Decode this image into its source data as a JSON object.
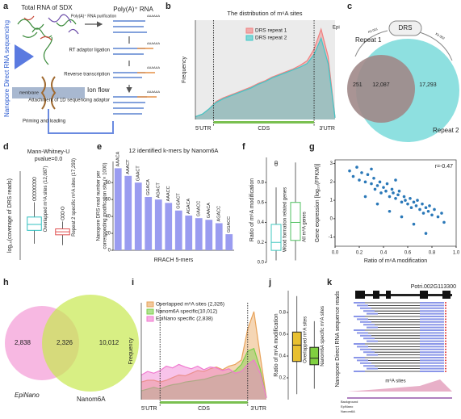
{
  "panel_labels": [
    "a",
    "b",
    "c",
    "d",
    "e",
    "f",
    "g",
    "h",
    "i",
    "j",
    "k"
  ],
  "panel_a": {
    "side_title": "Nanopore Direct RNA sequencing",
    "total_rna": "Total RNA of SDX",
    "purification": "Poly(A)⁺ RNA purification",
    "polya": "Poly(A)⁺ RNA",
    "steps": [
      "RT adaptor ligation",
      "Reverse transcription",
      "Attachment of 1D sequencing adaptor"
    ],
    "loading": "Priming and loading",
    "ion_flow": "Ion flow",
    "membrane": "membrane",
    "polya_tail": "AAAAAA"
  },
  "panel_c": {
    "top": "DRS",
    "kit1": "Kit 001",
    "kit2": "Kit 002",
    "left": "Repeat 1",
    "right": "Repeat 2",
    "only1": "251",
    "both": "12,087",
    "only2": "17,293"
  },
  "panel_h": {
    "left": "2,838",
    "both": "2,326",
    "right": "10,012",
    "name1": "EpiNano",
    "name2": "Nanom6A"
  },
  "panel_k": {
    "gene": "Potri.002G113300",
    "ylabel": "Nanopore Direct RNA sequence reads",
    "sites": "m⁶A sites",
    "tracks": [
      "Background",
      "EpiNano",
      "Nanom6A"
    ]
  },
  "chart_data": [
    {
      "type": "area",
      "title": "The distribution of m⁶A sites",
      "ylabel": "Frequency",
      "regions": [
        "5'UTR",
        "CDS",
        "3'UTR"
      ],
      "note": "Epi",
      "ylim": [
        0,
        1.1
      ],
      "background": "#ebebeb",
      "series": [
        {
          "name": "DRS repeat 1",
          "color": "#f08080",
          "values": [
            0.03,
            0.06,
            0.12,
            0.2,
            0.24,
            0.27,
            0.3,
            0.33,
            0.36,
            0.4,
            0.43,
            0.47,
            0.5,
            0.53,
            0.56,
            0.6,
            0.65,
            0.78,
            1.0,
            0.7,
            0.02
          ]
        },
        {
          "name": "DRS repeat 2",
          "color": "#40c8c8",
          "values": [
            0.03,
            0.06,
            0.12,
            0.19,
            0.23,
            0.26,
            0.29,
            0.32,
            0.35,
            0.39,
            0.42,
            0.46,
            0.49,
            0.52,
            0.55,
            0.58,
            0.62,
            0.72,
            0.9,
            0.62,
            0.02
          ]
        }
      ]
    },
    {
      "type": "box",
      "title": [
        "Mann-Whitney-U",
        "pvalue=0.0"
      ],
      "ylabel": "log₁₀(coverage of DRS reads)",
      "ylim": [
        0,
        6
      ],
      "fill_boxes": false,
      "boxes": [
        {
          "name": "Overlapped m⁶A sites (12,087)",
          "color": "#30c0c0",
          "low": 1.1,
          "q1": 2.0,
          "median": 2.4,
          "q3": 2.9,
          "high": 3.9,
          "outliers": [
            4.1,
            4.3,
            4.5,
            4.7,
            4.9,
            5.1,
            5.3,
            5.5
          ]
        },
        {
          "name": "Repeat 2 specific m⁶A sites (17,293)",
          "color": "#e05050",
          "low": 1.0,
          "q1": 1.7,
          "median": 1.9,
          "q3": 2.1,
          "high": 2.6,
          "outliers": [
            2.8,
            3.0,
            3.2,
            3.5
          ]
        }
      ]
    },
    {
      "type": "bar",
      "title": "12 identified k-mers by Nanom6A",
      "xlabel": "RRACH 5-mers",
      "ylabel": [
        "Nanopore DRS read number per",
        "corresponding modification site (× 1000)"
      ],
      "color": "#9a9cf0",
      "categories": [
        "AAACA",
        "AAACT",
        "GAACT",
        "GGACA",
        "AGACT",
        "AAACC",
        "GGACT",
        "AGACA",
        "GAACC",
        "GAACA",
        "AGACC",
        "GGACC"
      ],
      "values": [
        97,
        88,
        80,
        63,
        60,
        56,
        47,
        41,
        38,
        36,
        32,
        19
      ],
      "ylim": [
        0,
        105
      ],
      "yticks": [
        0,
        20,
        40,
        60,
        80
      ]
    },
    {
      "type": "box",
      "ylabel": "Ratio of m⁶A modification",
      "ylim": [
        0,
        1.05
      ],
      "yticks": [
        {
          "value": 0,
          "label": "0.0"
        },
        0.2,
        0.4,
        0.6,
        0.8
      ],
      "fill_boxes": false,
      "boxes": [
        {
          "name": "Wood formation related genes",
          "color": "#40c8c0",
          "low": 0.02,
          "q1": 0.12,
          "median": 0.2,
          "q3": 0.38,
          "high": 0.75,
          "outliers": [
            0.98,
            1.0
          ]
        },
        {
          "name": "All m⁶A genes",
          "color": "#50c060",
          "low": 0.02,
          "q1": 0.22,
          "median": 0.4,
          "q3": 0.6,
          "high": 1.0,
          "outliers": []
        }
      ]
    },
    {
      "type": "scatter",
      "xlabel": "Ratio of m⁶A modification",
      "ylabel": "Gene expression [log₁₀(FPKM)]",
      "annotation": "r=-0.47",
      "color": "#2a78b8",
      "xlim": [
        0,
        1.0
      ],
      "xticks": [
        {
          "value": 0,
          "label": "0.0"
        },
        0.2,
        0.4,
        0.6,
        0.8,
        {
          "value": 1,
          "label": "1.0"
        }
      ],
      "ylim": [
        -1.5,
        3.2
      ],
      "yticks": [
        -1,
        0,
        1,
        2,
        3
      ],
      "x": [
        0.12,
        0.15,
        0.18,
        0.2,
        0.22,
        0.25,
        0.27,
        0.3,
        0.32,
        0.33,
        0.35,
        0.37,
        0.38,
        0.4,
        0.42,
        0.43,
        0.45,
        0.47,
        0.48,
        0.5,
        0.52,
        0.53,
        0.55,
        0.57,
        0.58,
        0.6,
        0.62,
        0.63,
        0.65,
        0.67,
        0.68,
        0.7,
        0.72,
        0.73,
        0.75,
        0.77,
        0.78,
        0.8,
        0.82,
        0.85,
        0.88,
        0.9,
        0.25,
        0.35,
        0.45,
        0.55,
        0.65,
        0.75,
        0.3,
        0.5
      ],
      "y": [
        2.6,
        2.3,
        2.8,
        2.1,
        2.5,
        2.0,
        2.4,
        1.9,
        2.2,
        1.6,
        1.8,
        2.0,
        1.4,
        1.7,
        1.5,
        1.9,
        1.2,
        1.6,
        1.4,
        1.1,
        1.3,
        1.5,
        0.9,
        1.2,
        1.0,
        0.8,
        1.1,
        0.6,
        0.9,
        0.7,
        1.0,
        0.5,
        0.8,
        0.3,
        0.6,
        0.4,
        0.7,
        0.2,
        0.5,
        0.1,
        0.3,
        -0.2,
        1.2,
        0.8,
        0.4,
        0.1,
        -0.3,
        -0.8,
        2.7,
        2.1
      ]
    },
    {
      "type": "area",
      "ylabel": "Frequency",
      "regions": [
        "5'UTR",
        "CDS",
        "3'UTR"
      ],
      "ylim": [
        0,
        1.1
      ],
      "background": "#ffffff",
      "series": [
        {
          "name": "Overlapped m⁶A sites (2,326)",
          "color": "#e8a35a",
          "values": [
            0.2,
            0.22,
            0.22,
            0.2,
            0.22,
            0.25,
            0.28,
            0.27,
            0.3,
            0.33,
            0.32,
            0.35,
            0.37,
            0.34,
            0.38,
            0.4,
            0.45,
            0.8,
            1.0,
            0.5,
            0.02
          ]
        },
        {
          "name": "Nanom6A specific(10,012)",
          "color": "#7ccf4a",
          "values": [
            0.1,
            0.12,
            0.14,
            0.12,
            0.15,
            0.17,
            0.18,
            0.2,
            0.21,
            0.22,
            0.23,
            0.25,
            0.27,
            0.28,
            0.3,
            0.33,
            0.4,
            0.55,
            0.58,
            0.35,
            0.02
          ]
        },
        {
          "name": "EpiNano specific (2,838)",
          "color": "#f07ad0",
          "values": [
            0.28,
            0.32,
            0.3,
            0.33,
            0.38,
            0.36,
            0.4,
            0.37,
            0.35,
            0.38,
            0.34,
            0.37,
            0.36,
            0.33,
            0.35,
            0.3,
            0.32,
            0.4,
            0.45,
            0.3,
            0.02
          ]
        }
      ]
    },
    {
      "type": "box",
      "ylabel": "Ratio of m⁶A modification",
      "ylim": [
        0,
        1
      ],
      "yticks": [
        0.2,
        0.4,
        0.6,
        0.8
      ],
      "fill_boxes": true,
      "boxes": [
        {
          "name": "Overlapped m⁶A sites",
          "color": "#e8c030",
          "low": 0.05,
          "q1": 0.35,
          "median": 0.5,
          "q3": 0.62,
          "high": 0.95,
          "outliers": []
        },
        {
          "name": "Nanom6A specific m⁶A sites",
          "color": "#80d040",
          "low": 0.1,
          "q1": 0.32,
          "median": 0.38,
          "q3": 0.48,
          "high": 0.72,
          "outliers": []
        }
      ]
    }
  ]
}
